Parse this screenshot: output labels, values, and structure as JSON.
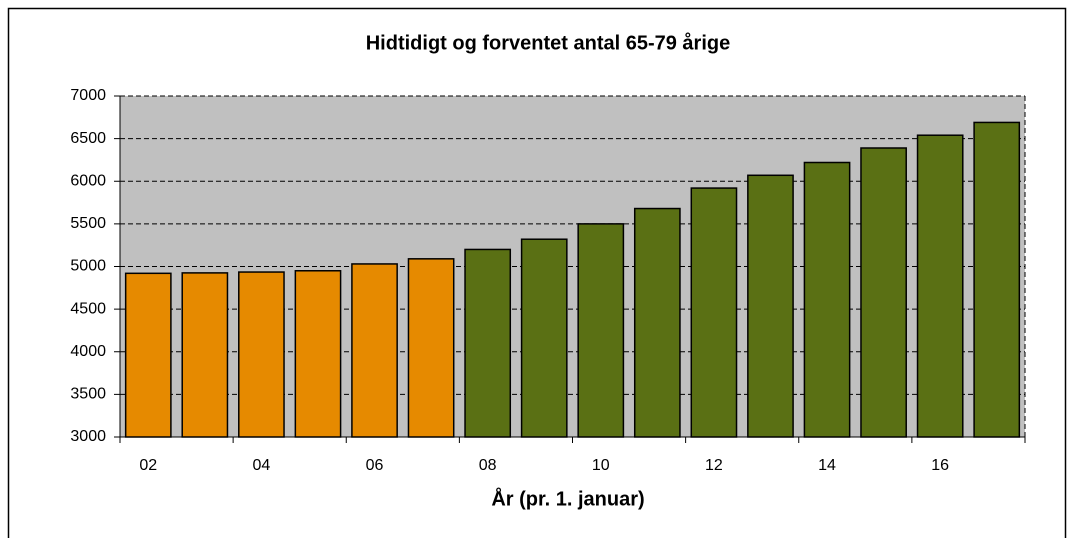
{
  "chart_data": {
    "type": "bar",
    "title": "Hidtidigt og forventet antal 65-79 årige",
    "x_label": "År (pr. 1. januar)",
    "categories": [
      "02",
      null,
      "04",
      null,
      "06",
      null,
      "08",
      null,
      "10",
      null,
      "12",
      null,
      "14",
      null,
      "16",
      null
    ],
    "values": [
      4920,
      4925,
      4935,
      4950,
      5030,
      5090,
      5200,
      5320,
      5500,
      5680,
      5920,
      6070,
      6220,
      6390,
      6540,
      6690
    ],
    "colors": [
      "#e68a00",
      "#e68a00",
      "#e68a00",
      "#e68a00",
      "#e68a00",
      "#e68a00",
      "#5a7014",
      "#5a7014",
      "#5a7014",
      "#5a7014",
      "#5a7014",
      "#5a7014",
      "#5a7014",
      "#5a7014",
      "#5a7014",
      "#5a7014"
    ],
    "ylim": [
      3000,
      7000
    ],
    "yticks": [
      3000,
      3500,
      4000,
      4500,
      5000,
      5500,
      6000,
      6500,
      7000
    ],
    "grid": true
  }
}
